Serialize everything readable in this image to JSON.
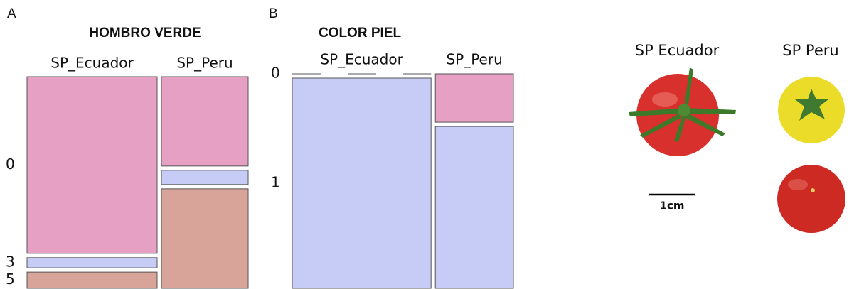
{
  "chart_data": [
    {
      "type": "mosaic",
      "panel": "A",
      "title": "HOMBRO VERDE",
      "categories": [
        "SP_Ecuador",
        "SP_Peru"
      ],
      "widths": [
        60,
        40
      ],
      "series": [
        {
          "name": "0",
          "color": "#e6a0c4",
          "values": [
            87,
            44
          ]
        },
        {
          "name": "3",
          "color": "#c6ccf5",
          "values": [
            5,
            7
          ]
        },
        {
          "name": "5",
          "color": "#d8a499",
          "values": [
            8,
            49
          ]
        }
      ]
    },
    {
      "type": "mosaic",
      "panel": "B",
      "title": "COLOR PIEL",
      "categories": [
        "SP_Ecuador",
        "SP_Peru"
      ],
      "widths": [
        64,
        36
      ],
      "series": [
        {
          "name": "0",
          "color": "#e6a0c4",
          "values": [
            0,
            23
          ]
        },
        {
          "name": "1",
          "color": "#c6ccf5",
          "values": [
            100,
            77
          ]
        }
      ]
    }
  ],
  "photo": {
    "labels": [
      "SP Ecuador",
      "SP Peru"
    ],
    "scale": "1cm"
  }
}
